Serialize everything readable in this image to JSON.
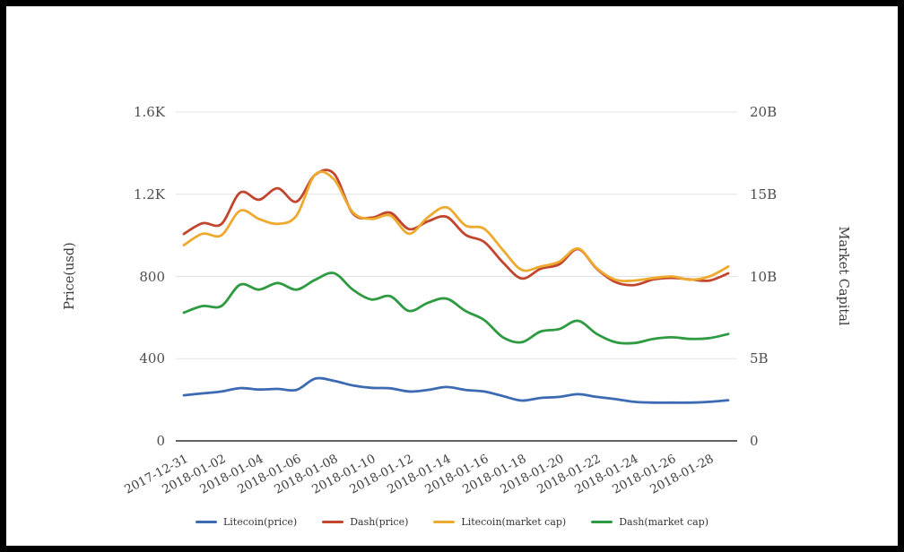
{
  "chart_data": {
    "type": "line",
    "title": "",
    "x": [
      "2017-12-31",
      "2018-01-01",
      "2018-01-02",
      "2018-01-03",
      "2018-01-04",
      "2018-01-05",
      "2018-01-06",
      "2018-01-07",
      "2018-01-08",
      "2018-01-09",
      "2018-01-10",
      "2018-01-11",
      "2018-01-12",
      "2018-01-13",
      "2018-01-14",
      "2018-01-15",
      "2018-01-16",
      "2018-01-17",
      "2018-01-18",
      "2018-01-19",
      "2018-01-20",
      "2018-01-21",
      "2018-01-22",
      "2018-01-23",
      "2018-01-24",
      "2018-01-25",
      "2018-01-26",
      "2018-01-27",
      "2018-01-28",
      "2018-01-29"
    ],
    "x_tick_labels": [
      "2017-12-31",
      "2018-01-02",
      "2018-01-04",
      "2018-01-06",
      "2018-01-08",
      "2018-01-10",
      "2018-01-12",
      "2018-01-14",
      "2018-01-16",
      "2018-01-18",
      "2018-01-20",
      "2018-01-22",
      "2018-01-24",
      "2018-01-26",
      "2018-01-28"
    ],
    "y_left": {
      "label": "Price(usd)",
      "ticks": [
        "0",
        "400",
        "800",
        "1.2K",
        "1.6K"
      ],
      "range": [
        0,
        1600
      ]
    },
    "y_right": {
      "label": "Market Capital",
      "ticks": [
        "0",
        "5B",
        "10B",
        "15B",
        "20B"
      ],
      "range": [
        0,
        20000000000
      ]
    },
    "grid": true,
    "legend_position": "bottom",
    "series": [
      {
        "name": "Litecoin(price)",
        "axis": "left",
        "color": "#3d6bb3",
        "values": [
          222,
          231,
          240,
          257,
          250,
          253,
          248,
          303,
          292,
          270,
          258,
          256,
          240,
          248,
          262,
          248,
          240,
          218,
          196,
          209,
          214,
          227,
          214,
          203,
          190,
          186,
          186,
          186,
          190,
          198
        ]
      },
      {
        "name": "Dash(price)",
        "axis": "left",
        "color": "#c2452d",
        "values": [
          1007,
          1059,
          1055,
          1208,
          1173,
          1229,
          1164,
          1295,
          1300,
          1107,
          1086,
          1110,
          1030,
          1068,
          1090,
          1003,
          968,
          868,
          790,
          837,
          859,
          933,
          837,
          772,
          758,
          785,
          793,
          785,
          780,
          815
        ]
      },
      {
        "name": "Litecoin(market cap)",
        "axis": "right",
        "color": "#edaa2f",
        "values": [
          11900000000,
          12600000000,
          12500000000,
          14000000000,
          13500000000,
          13200000000,
          13700000000,
          16200000000,
          15900000000,
          13900000000,
          13500000000,
          13700000000,
          12600000000,
          13600000000,
          14200000000,
          13100000000,
          12900000000,
          11600000000,
          10400000000,
          10600000000,
          10900000000,
          11700000000,
          10500000000,
          9800000000,
          9750000000,
          9900000000,
          10000000000,
          9800000000,
          10000000000,
          10600000000
        ]
      },
      {
        "name": "Dash(market cap)",
        "axis": "right",
        "color": "#2e9a41",
        "values": [
          7800000000,
          8200000000,
          8200000000,
          9500000000,
          9200000000,
          9600000000,
          9200000000,
          9800000000,
          10200000000,
          9200000000,
          8600000000,
          8800000000,
          7900000000,
          8400000000,
          8650000000,
          7900000000,
          7350000000,
          6300000000,
          6000000000,
          6650000000,
          6800000000,
          7300000000,
          6500000000,
          6000000000,
          5950000000,
          6200000000,
          6300000000,
          6200000000,
          6250000000,
          6500000000
        ]
      }
    ],
    "colors": {
      "grid": "#e3e3e3",
      "axis_line": "#2e2e2e",
      "tick_text": "#4d4d4d"
    }
  }
}
